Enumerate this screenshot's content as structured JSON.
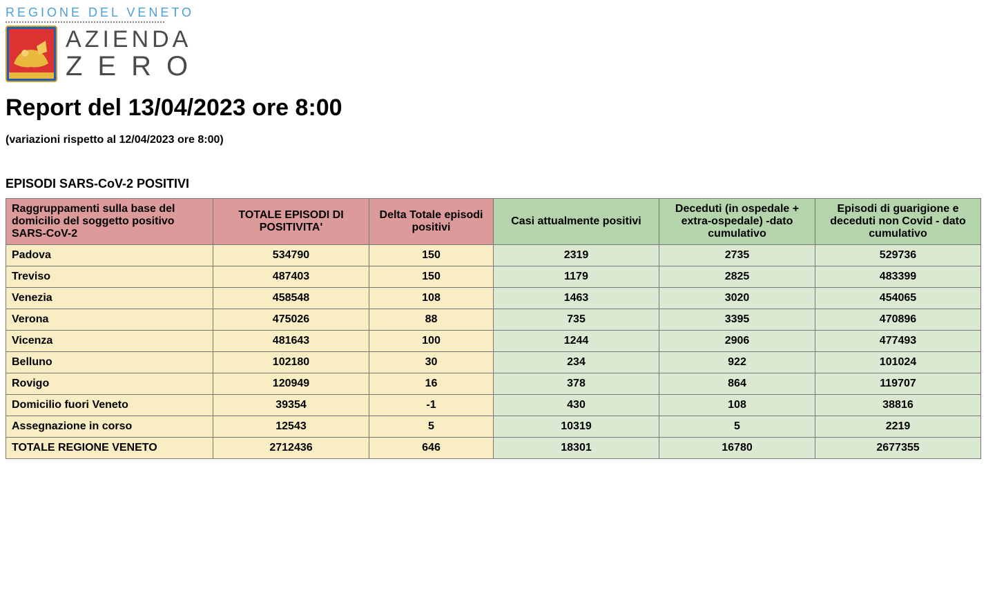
{
  "header": {
    "region_label": "REGIONE DEL VENETO",
    "logo_top": "AZIENDA",
    "logo_bottom": "ZERO"
  },
  "report": {
    "title": "Report del 13/04/2023 ore 8:00",
    "subtitle": "(variazioni rispetto al 12/04/2023 ore 8:00)",
    "section_title": "EPISODI SARS-CoV-2 POSITIVI"
  },
  "table": {
    "header_colors": {
      "pink": "#dd9a9a",
      "green": "#b4d5ab"
    },
    "row_colors": {
      "yellow": "#f9edc4",
      "lightgreen": "#dbe9d3"
    },
    "border_color": "#777777",
    "columns": [
      {
        "label": "Raggruppamenti sulla base del domicilio del soggetto positivo SARS-CoV-2",
        "header_bg": "pink",
        "cell_bg": "yellow",
        "align": "left"
      },
      {
        "label": "TOTALE EPISODI DI POSITIVITA'",
        "header_bg": "pink",
        "cell_bg": "yellow",
        "align": "center"
      },
      {
        "label": "Delta Totale episodi positivi",
        "header_bg": "pink",
        "cell_bg": "yellow",
        "align": "center"
      },
      {
        "label": "Casi attualmente positivi",
        "header_bg": "green",
        "cell_bg": "lightgreen",
        "align": "center"
      },
      {
        "label": "Deceduti (in ospedale + extra-ospedale) -dato cumulativo",
        "header_bg": "green",
        "cell_bg": "lightgreen",
        "align": "center"
      },
      {
        "label": "Episodi di guarigione e deceduti non Covid - dato cumulativo",
        "header_bg": "green",
        "cell_bg": "lightgreen",
        "align": "center"
      }
    ],
    "rows": [
      [
        "Padova",
        "534790",
        "150",
        "2319",
        "2735",
        "529736"
      ],
      [
        "Treviso",
        "487403",
        "150",
        "1179",
        "2825",
        "483399"
      ],
      [
        "Venezia",
        "458548",
        "108",
        "1463",
        "3020",
        "454065"
      ],
      [
        "Verona",
        "475026",
        "88",
        "735",
        "3395",
        "470896"
      ],
      [
        "Vicenza",
        "481643",
        "100",
        "1244",
        "2906",
        "477493"
      ],
      [
        "Belluno",
        "102180",
        "30",
        "234",
        "922",
        "101024"
      ],
      [
        "Rovigo",
        "120949",
        "16",
        "378",
        "864",
        "119707"
      ],
      [
        "Domicilio fuori Veneto",
        "39354",
        "-1",
        "430",
        "108",
        "38816"
      ],
      [
        "Assegnazione in corso",
        "12543",
        "5",
        "10319",
        "5",
        "2219"
      ],
      [
        "TOTALE REGIONE VENETO",
        "2712436",
        "646",
        "18301",
        "16780",
        "2677355"
      ]
    ]
  }
}
